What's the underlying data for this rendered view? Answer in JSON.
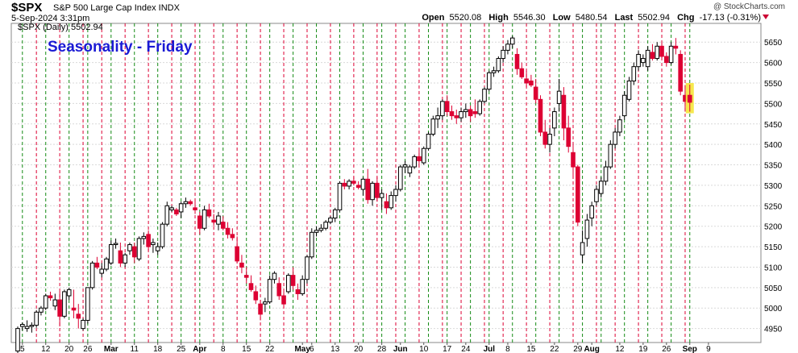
{
  "header": {
    "ticker": "$SPX",
    "name": "S&P 500 Large Cap Index INDX",
    "date": "5-Sep-2024 3:31pm",
    "brand": "@ StockCharts.com",
    "open_label": "Open",
    "open": "5520.08",
    "high_label": "High",
    "high": "5546.30",
    "low_label": "Low",
    "low": "5480.54",
    "last_label": "Last",
    "last": "5502.94",
    "chg_label": "Chg",
    "chg": "-17.13 (-0.31%)"
  },
  "legend": {
    "text": "$SPX (Daily) 5502.94"
  },
  "annotation": {
    "text": "Seasonality - Friday",
    "color": "#1a1ad4"
  },
  "colors": {
    "up": "#000000",
    "down": "#dd0033",
    "green_line": "#138a13",
    "red_line": "#dd0033",
    "highlight": "#f5e53a"
  },
  "chart_data": {
    "type": "candlestick",
    "ylim": [
      4900,
      5680
    ],
    "yticks": [
      4900,
      4950,
      5000,
      5050,
      5100,
      5150,
      5200,
      5250,
      5300,
      5350,
      5400,
      5450,
      5500,
      5550,
      5600,
      5650
    ],
    "xticks": [
      {
        "label": "5",
        "i": 1,
        "bold": false
      },
      {
        "label": "12",
        "i": 6,
        "bold": false
      },
      {
        "label": "20",
        "i": 11,
        "bold": false
      },
      {
        "label": "26",
        "i": 15,
        "bold": false
      },
      {
        "label": "Mar",
        "i": 20,
        "bold": true
      },
      {
        "label": "11",
        "i": 25,
        "bold": false
      },
      {
        "label": "18",
        "i": 30,
        "bold": false
      },
      {
        "label": "25",
        "i": 35,
        "bold": false
      },
      {
        "label": "Apr",
        "i": 39,
        "bold": true
      },
      {
        "label": "8",
        "i": 44,
        "bold": false
      },
      {
        "label": "15",
        "i": 49,
        "bold": false
      },
      {
        "label": "22",
        "i": 54,
        "bold": false
      },
      {
        "label": "May",
        "i": 61,
        "bold": true
      },
      {
        "label": "6",
        "i": 63,
        "bold": false
      },
      {
        "label": "13",
        "i": 68,
        "bold": false
      },
      {
        "label": "20",
        "i": 73,
        "bold": false
      },
      {
        "label": "28",
        "i": 78,
        "bold": false
      },
      {
        "label": "Jun",
        "i": 82,
        "bold": true
      },
      {
        "label": "10",
        "i": 87,
        "bold": false
      },
      {
        "label": "17",
        "i": 92,
        "bold": false
      },
      {
        "label": "24",
        "i": 96,
        "bold": false
      },
      {
        "label": "Jul",
        "i": 101,
        "bold": true
      },
      {
        "label": "8",
        "i": 105,
        "bold": false
      },
      {
        "label": "15",
        "i": 110,
        "bold": false
      },
      {
        "label": "22",
        "i": 115,
        "bold": false
      },
      {
        "label": "29",
        "i": 120,
        "bold": false
      },
      {
        "label": "Aug",
        "i": 123,
        "bold": true
      },
      {
        "label": "12",
        "i": 129,
        "bold": false
      },
      {
        "label": "19",
        "i": 134,
        "bold": false
      },
      {
        "label": "26",
        "i": 139,
        "bold": false
      },
      {
        "label": "Sep",
        "i": 144,
        "bold": true
      },
      {
        "label": "9",
        "i": 148,
        "bold": false
      }
    ],
    "friday_index": [
      4,
      9,
      14,
      18,
      23,
      28,
      33,
      38,
      42,
      47,
      52,
      57,
      62,
      67,
      72,
      77,
      81,
      86,
      91,
      95,
      100,
      104,
      109,
      114,
      119,
      124,
      128,
      133,
      138,
      143
    ],
    "monday_index": [
      1,
      6,
      11,
      15,
      20,
      25,
      30,
      35,
      39,
      44,
      49,
      54,
      59,
      64,
      69,
      74,
      78,
      83,
      88,
      92,
      97,
      101,
      106,
      111,
      116,
      121,
      125,
      130,
      135,
      140,
      144
    ],
    "ohlc": [
      [
        4895,
        4955,
        4888,
        4950
      ],
      [
        4955,
        4965,
        4945,
        4960
      ],
      [
        4950,
        4970,
        4942,
        4955
      ],
      [
        4955,
        4965,
        4940,
        4958
      ],
      [
        4958,
        4995,
        4952,
        4990
      ],
      [
        4990,
        5005,
        4982,
        5000
      ],
      [
        5000,
        5035,
        4995,
        5030
      ],
      [
        5030,
        5040,
        5018,
        5025
      ],
      [
        5005,
        5035,
        4995,
        5020
      ],
      [
        5020,
        5040,
        4955,
        4980
      ],
      [
        4980,
        5045,
        4975,
        5040
      ],
      [
        5030,
        5050,
        5020,
        5045
      ],
      [
        5000,
        5045,
        4975,
        4995
      ],
      [
        4985,
        5010,
        4950,
        4975
      ],
      [
        4950,
        4975,
        4945,
        4970
      ],
      [
        4970,
        5050,
        4962,
        5050
      ],
      [
        5050,
        5115,
        5045,
        5110
      ],
      [
        5110,
        5125,
        5095,
        5100
      ],
      [
        5085,
        5110,
        5075,
        5095
      ],
      [
        5095,
        5125,
        5090,
        5120
      ],
      [
        5110,
        5165,
        5105,
        5155
      ],
      [
        5155,
        5170,
        5145,
        5158
      ],
      [
        5140,
        5160,
        5100,
        5110
      ],
      [
        5110,
        5135,
        5100,
        5130
      ],
      [
        5140,
        5160,
        5130,
        5155
      ],
      [
        5150,
        5160,
        5110,
        5125
      ],
      [
        5120,
        5175,
        5115,
        5170
      ],
      [
        5170,
        5185,
        5155,
        5175
      ],
      [
        5180,
        5190,
        5140,
        5150
      ],
      [
        5155,
        5170,
        5135,
        5160
      ],
      [
        5140,
        5160,
        5130,
        5150
      ],
      [
        5150,
        5210,
        5145,
        5205
      ],
      [
        5205,
        5260,
        5200,
        5250
      ],
      [
        5240,
        5250,
        5235,
        5245
      ],
      [
        5240,
        5245,
        5225,
        5230
      ],
      [
        5235,
        5260,
        5220,
        5255
      ],
      [
        5255,
        5270,
        5245,
        5260
      ],
      [
        5260,
        5265,
        5250,
        5255
      ],
      [
        5245,
        5265,
        5230,
        5240
      ],
      [
        5225,
        5235,
        5180,
        5195
      ],
      [
        5195,
        5250,
        5190,
        5240
      ],
      [
        5240,
        5255,
        5220,
        5225
      ],
      [
        5215,
        5230,
        5200,
        5210
      ],
      [
        5205,
        5235,
        5190,
        5225
      ],
      [
        5210,
        5225,
        5190,
        5195
      ],
      [
        5195,
        5210,
        5170,
        5180
      ],
      [
        5180,
        5195,
        5165,
        5172
      ],
      [
        5150,
        5175,
        5110,
        5115
      ],
      [
        5110,
        5130,
        5085,
        5100
      ],
      [
        5080,
        5100,
        5060,
        5075
      ],
      [
        5060,
        5080,
        5040,
        5045
      ],
      [
        5040,
        5055,
        5010,
        5020
      ],
      [
        5010,
        5020,
        4970,
        4985
      ],
      [
        5010,
        5025,
        4990,
        5015
      ],
      [
        5015,
        5080,
        5010,
        5070
      ],
      [
        5070,
        5090,
        5060,
        5085
      ],
      [
        5060,
        5075,
        5020,
        5030
      ],
      [
        5030,
        5040,
        5000,
        5010
      ],
      [
        5040,
        5085,
        5035,
        5080
      ],
      [
        5080,
        5100,
        5045,
        5055
      ],
      [
        5045,
        5060,
        5020,
        5035
      ],
      [
        5035,
        5080,
        5030,
        5070
      ],
      [
        5070,
        5130,
        5060,
        5125
      ],
      [
        5125,
        5195,
        5120,
        5185
      ],
      [
        5185,
        5200,
        5175,
        5190
      ],
      [
        5190,
        5205,
        5185,
        5195
      ],
      [
        5195,
        5215,
        5190,
        5210
      ],
      [
        5210,
        5225,
        5205,
        5220
      ],
      [
        5220,
        5245,
        5210,
        5240
      ],
      [
        5240,
        5310,
        5235,
        5305
      ],
      [
        5305,
        5315,
        5290,
        5298
      ],
      [
        5298,
        5315,
        5290,
        5310
      ],
      [
        5310,
        5320,
        5300,
        5305
      ],
      [
        5300,
        5310,
        5290,
        5295
      ],
      [
        5290,
        5320,
        5275,
        5315
      ],
      [
        5315,
        5340,
        5255,
        5265
      ],
      [
        5265,
        5310,
        5250,
        5305
      ],
      [
        5305,
        5320,
        5260,
        5270
      ],
      [
        5270,
        5290,
        5240,
        5280
      ],
      [
        5260,
        5280,
        5230,
        5245
      ],
      [
        5245,
        5285,
        5240,
        5275
      ],
      [
        5275,
        5300,
        5260,
        5290
      ],
      [
        5290,
        5350,
        5285,
        5345
      ],
      [
        5345,
        5360,
        5330,
        5350
      ],
      [
        5330,
        5350,
        5320,
        5345
      ],
      [
        5345,
        5375,
        5340,
        5370
      ],
      [
        5370,
        5385,
        5350,
        5360
      ],
      [
        5355,
        5395,
        5350,
        5390
      ],
      [
        5390,
        5430,
        5385,
        5425
      ],
      [
        5425,
        5470,
        5420,
        5462
      ],
      [
        5462,
        5490,
        5440,
        5470
      ],
      [
        5470,
        5510,
        5460,
        5505
      ],
      [
        5505,
        5520,
        5470,
        5480
      ],
      [
        5480,
        5495,
        5460,
        5470
      ],
      [
        5470,
        5485,
        5450,
        5465
      ],
      [
        5465,
        5490,
        5455,
        5480
      ],
      [
        5480,
        5500,
        5465,
        5485
      ],
      [
        5485,
        5495,
        5455,
        5470
      ],
      [
        5480,
        5510,
        5465,
        5475
      ],
      [
        5475,
        5510,
        5470,
        5505
      ],
      [
        5505,
        5540,
        5500,
        5535
      ],
      [
        5535,
        5580,
        5530,
        5575
      ],
      [
        5575,
        5590,
        5565,
        5580
      ],
      [
        5580,
        5615,
        5575,
        5610
      ],
      [
        5610,
        5640,
        5600,
        5630
      ],
      [
        5630,
        5655,
        5620,
        5645
      ],
      [
        5645,
        5665,
        5635,
        5660
      ],
      [
        5620,
        5635,
        5570,
        5585
      ],
      [
        5585,
        5600,
        5560,
        5565
      ],
      [
        5560,
        5580,
        5540,
        5550
      ],
      [
        5555,
        5570,
        5540,
        5545
      ],
      [
        5540,
        5560,
        5500,
        5510
      ],
      [
        5510,
        5520,
        5420,
        5430
      ],
      [
        5430,
        5460,
        5390,
        5400
      ],
      [
        5400,
        5440,
        5380,
        5425
      ],
      [
        5440,
        5490,
        5420,
        5480
      ],
      [
        5500,
        5560,
        5480,
        5530
      ],
      [
        5520,
        5540,
        5410,
        5440
      ],
      [
        5440,
        5470,
        5380,
        5395
      ],
      [
        5380,
        5400,
        5320,
        5345
      ],
      [
        5345,
        5350,
        5200,
        5210
      ],
      [
        5130,
        5190,
        5110,
        5160
      ],
      [
        5170,
        5230,
        5150,
        5215
      ],
      [
        5220,
        5260,
        5200,
        5250
      ],
      [
        5260,
        5300,
        5250,
        5290
      ],
      [
        5280,
        5320,
        5270,
        5310
      ],
      [
        5310,
        5360,
        5300,
        5345
      ],
      [
        5345,
        5410,
        5340,
        5400
      ],
      [
        5400,
        5440,
        5390,
        5430
      ],
      [
        5430,
        5470,
        5420,
        5460
      ],
      [
        5470,
        5530,
        5460,
        5520
      ],
      [
        5510,
        5565,
        5505,
        5555
      ],
      [
        5555,
        5600,
        5545,
        5590
      ],
      [
        5590,
        5630,
        5580,
        5620
      ],
      [
        5600,
        5620,
        5590,
        5610
      ],
      [
        5590,
        5640,
        5580,
        5630
      ],
      [
        5625,
        5645,
        5605,
        5610
      ],
      [
        5610,
        5650,
        5605,
        5640
      ],
      [
        5640,
        5650,
        5610,
        5615
      ],
      [
        5615,
        5625,
        5590,
        5600
      ],
      [
        5600,
        5650,
        5595,
        5640
      ],
      [
        5640,
        5660,
        5620,
        5635
      ],
      [
        5620,
        5630,
        5520,
        5530
      ],
      [
        5520,
        5545,
        5480,
        5505
      ],
      [
        5520,
        5546,
        5480,
        5503
      ]
    ]
  }
}
